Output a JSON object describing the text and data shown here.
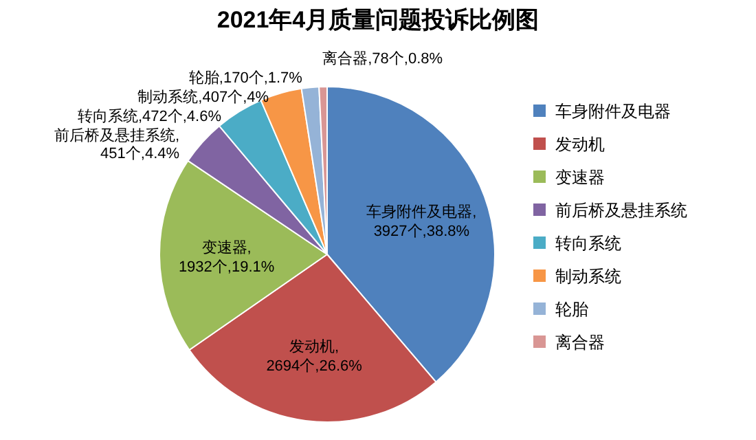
{
  "chart_data": {
    "type": "pie",
    "title": "2021年4月质量问题投诉比例图",
    "categories": [
      "车身附件及电器",
      "发动机",
      "变速器",
      "前后桥及悬挂系统",
      "转向系统",
      "制动系统",
      "轮胎",
      "离合器"
    ],
    "values": [
      3927,
      2694,
      1932,
      451,
      472,
      407,
      170,
      78
    ],
    "colors": [
      "#4f81bd",
      "#c0504d",
      "#9bbb59",
      "#8064a2",
      "#4bacc6",
      "#f79646",
      "#95b3d7",
      "#d99694"
    ],
    "value_labels": [
      "车身附件及电器,\n3927个,38.8%",
      "发动机,\n2694个,26.6%",
      "变速器,\n1932个,19.1%",
      "前后桥及悬挂系统,\n451个,4.4%",
      "转向系统,472个,4.6%",
      "制动系统,407个,4%",
      "轮胎,170个,1.7%",
      "离合器,78个,0.8%"
    ],
    "legend": "right"
  }
}
